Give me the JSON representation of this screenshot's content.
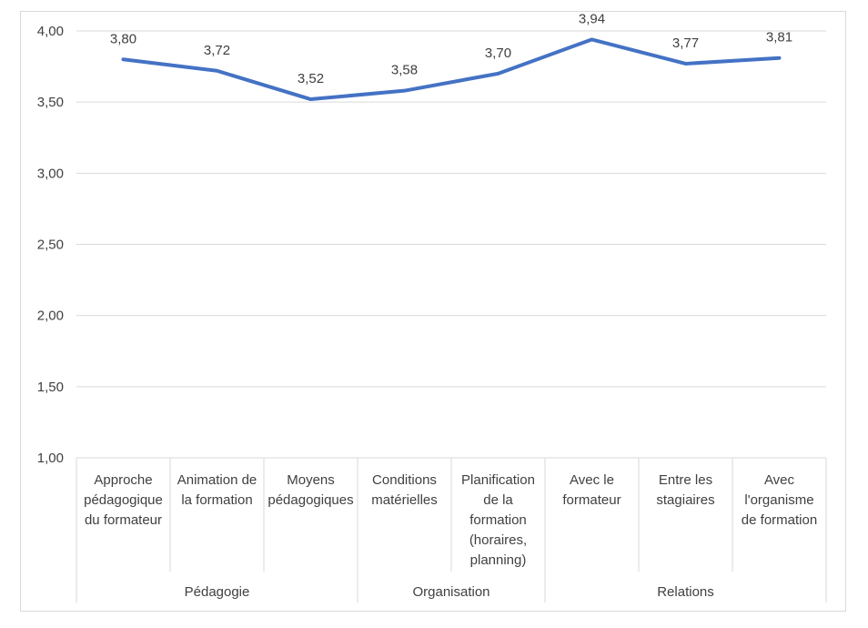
{
  "chart_data": {
    "type": "line",
    "title": "",
    "xlabel": "",
    "ylabel": "",
    "ylim": [
      1.0,
      4.0
    ],
    "yticks": [
      "1,00",
      "1,50",
      "2,00",
      "2,50",
      "3,00",
      "3,50",
      "4,00"
    ],
    "grid": true,
    "legend": "none",
    "groups": [
      {
        "label": "Pédagogie",
        "span": 3
      },
      {
        "label": "Organisation",
        "span": 2
      },
      {
        "label": "Relations",
        "span": 3
      }
    ],
    "categories": [
      [
        "Approche",
        "pédagogique",
        "du formateur"
      ],
      [
        "Animation de",
        "la formation"
      ],
      [
        "Moyens",
        "pédagogiques"
      ],
      [
        "Conditions",
        "matérielles"
      ],
      [
        "Planification",
        "de la",
        "formation",
        "(horaires,",
        "planning)"
      ],
      [
        "Avec le",
        "formateur"
      ],
      [
        "Entre les",
        "stagiaires"
      ],
      [
        "Avec",
        "l'organisme",
        "de formation"
      ]
    ],
    "series": [
      {
        "values": [
          3.8,
          3.72,
          3.52,
          3.58,
          3.7,
          3.94,
          3.77,
          3.81
        ],
        "labels": [
          "3,80",
          "3,72",
          "3,52",
          "3,58",
          "3,70",
          "3,94",
          "3,77",
          "3,81"
        ],
        "color": "#4472c4"
      }
    ],
    "gridColor": "#d9d9d9",
    "textColor": "#404040"
  }
}
